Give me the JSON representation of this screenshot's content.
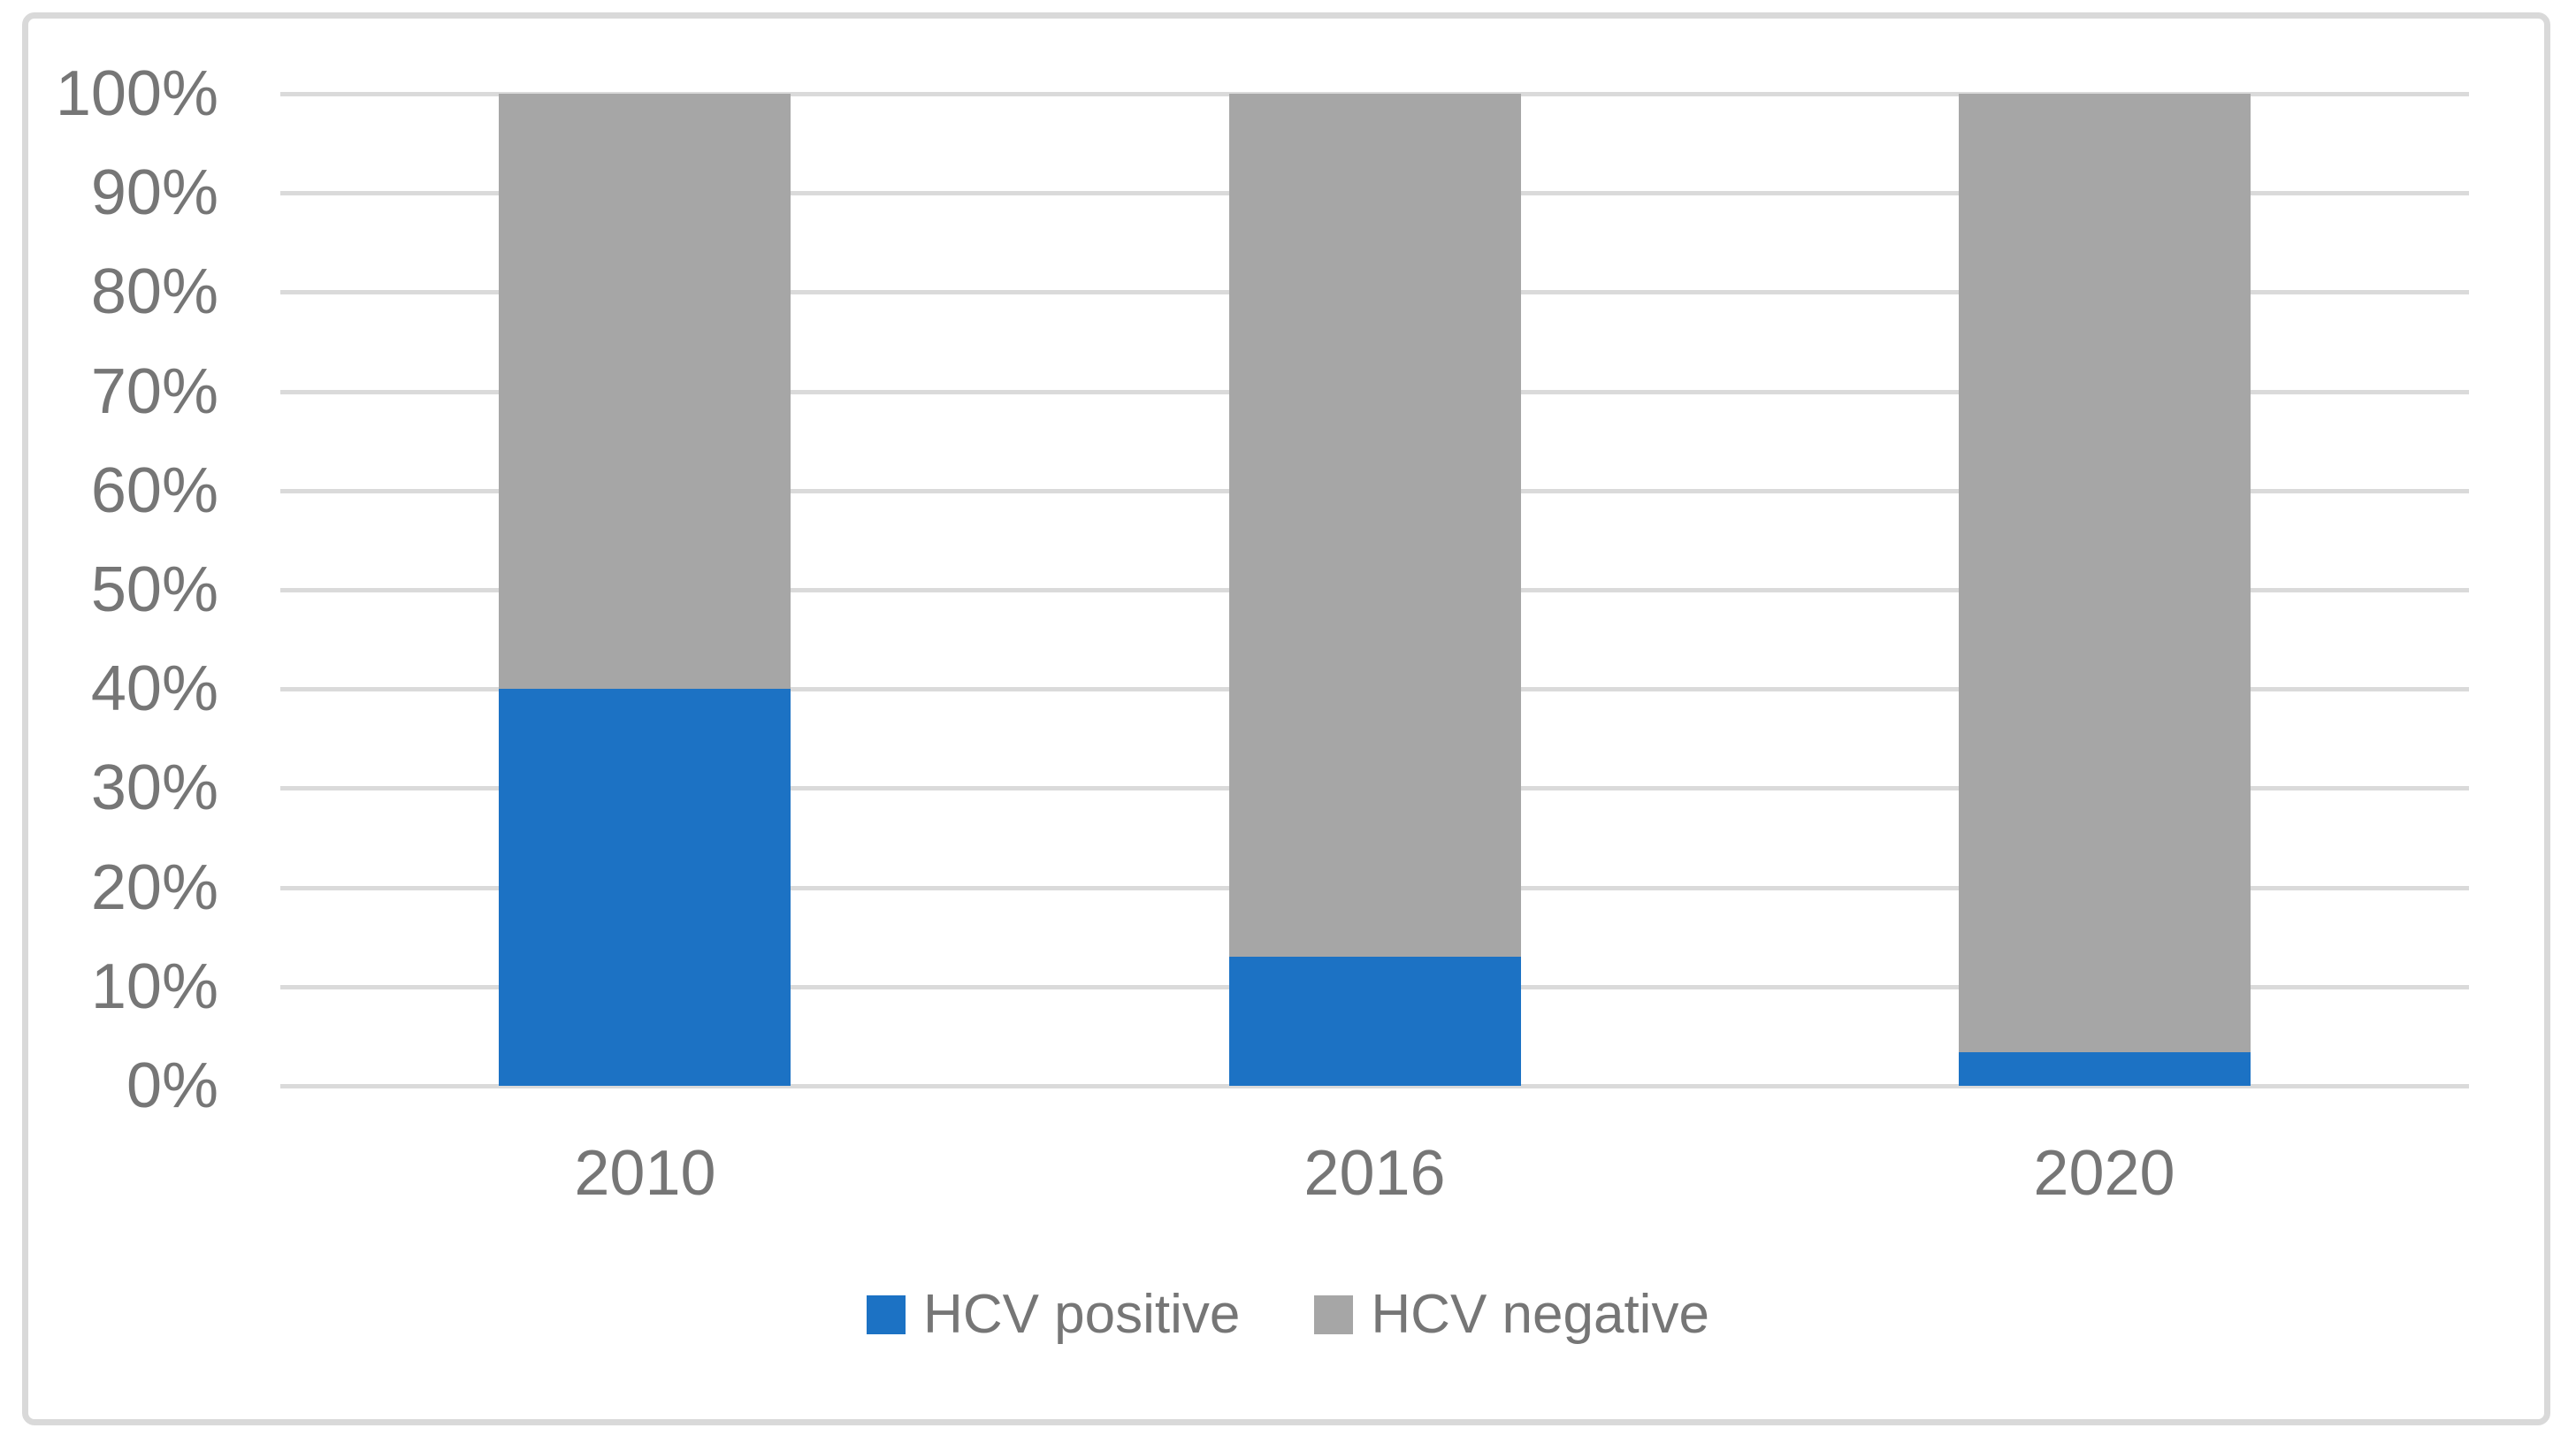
{
  "chart_data": {
    "type": "bar",
    "stacked": true,
    "percent_stacked": true,
    "title": "",
    "xlabel": "",
    "ylabel": "",
    "categories": [
      "2010",
      "2016",
      "2020"
    ],
    "series": [
      {
        "name": "HCV positive",
        "color": "#1C72C4",
        "values": [
          40,
          13,
          3.4
        ]
      },
      {
        "name": "HCV negative",
        "color": "#A6A6A6",
        "values": [
          60,
          87,
          96.6
        ]
      }
    ],
    "ylim": [
      0,
      100
    ],
    "y_ticks": [
      "100%",
      "90%",
      "80%",
      "70%",
      "60%",
      "50%",
      "40%",
      "30%",
      "20%",
      "10%",
      "0%"
    ],
    "grid": true,
    "legend_position": "bottom"
  },
  "legend": {
    "items": [
      {
        "label": "HCV positive",
        "color": "#1C72C4"
      },
      {
        "label": "HCV negative",
        "color": "#A6A6A6"
      }
    ]
  },
  "colors": {
    "background": "#FFFFFF",
    "grid": "#DADADA",
    "frame_border": "#D9D9D9",
    "text": "#767676"
  }
}
